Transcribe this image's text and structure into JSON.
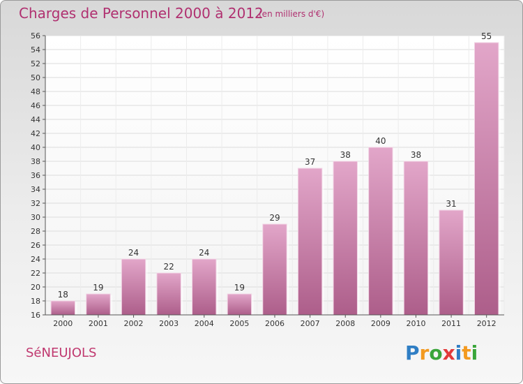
{
  "header": {
    "title": "Charges de Personnel 2000 à 2012",
    "unit_note": "(en milliers d'€)"
  },
  "footer": {
    "commune": "SéNEUJOLS",
    "logo_letters": [
      "P",
      "r",
      "o",
      "x",
      "i",
      "t",
      "i"
    ],
    "logo_colors": [
      "#2f7ec4",
      "#f39a20",
      "#3aa53a",
      "#e23a3a",
      "#2f7ec4",
      "#f39a20",
      "#3aa53a"
    ]
  },
  "chart_data": {
    "type": "bar",
    "categories": [
      "2000",
      "2001",
      "2002",
      "2003",
      "2004",
      "2005",
      "2006",
      "2007",
      "2008",
      "2009",
      "2010",
      "2011",
      "2012"
    ],
    "values": [
      18,
      19,
      24,
      22,
      24,
      19,
      29,
      37,
      38,
      40,
      38,
      31,
      55
    ],
    "ylim": [
      16,
      56
    ],
    "ytick_step": 2,
    "grid": true,
    "bar_color": "#c0689a"
  }
}
